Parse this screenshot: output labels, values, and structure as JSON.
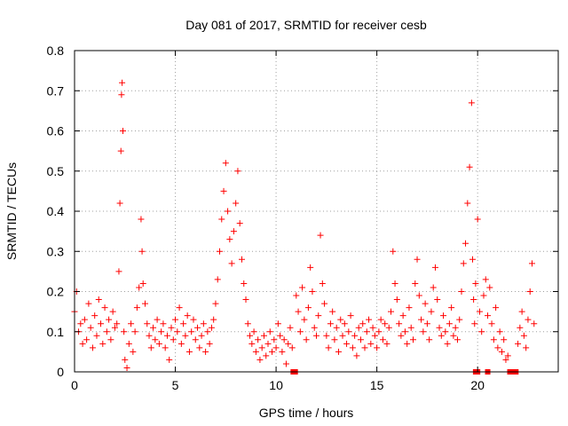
{
  "chart_data": {
    "type": "scatter",
    "title": "Day 081 of 2017, SRMTID for receiver cesb",
    "xlabel": "GPS time / hours",
    "ylabel": "SRMTID / TECUs",
    "xlim": [
      0,
      24
    ],
    "ylim": [
      0,
      0.8
    ],
    "grid": true,
    "marker": "+",
    "color": "#ff0000",
    "xticks": [
      0,
      5,
      10,
      15,
      20
    ],
    "xtick_labels": [
      "0",
      "5",
      "10",
      "15",
      "20"
    ],
    "yticks": [
      0,
      0.1,
      0.2,
      0.3,
      0.4,
      0.5,
      0.6,
      0.7,
      0.8
    ],
    "ytick_labels": [
      "0",
      "0.1",
      "0.2",
      "0.3",
      "0.4",
      "0.5",
      "0.6",
      "0.7",
      "0.8"
    ],
    "series": [
      {
        "name": "SRMTID",
        "x": [
          0.0,
          0.1,
          0.2,
          0.3,
          0.4,
          0.5,
          0.6,
          0.7,
          0.8,
          0.9,
          1.0,
          1.1,
          1.2,
          1.3,
          1.4,
          1.5,
          1.6,
          1.7,
          1.8,
          1.9,
          2.0,
          2.1,
          2.2,
          2.25,
          2.3,
          2.33,
          2.36,
          2.4,
          2.45,
          2.5,
          2.6,
          2.7,
          2.8,
          2.9,
          3.0,
          3.1,
          3.2,
          3.3,
          3.35,
          3.4,
          3.5,
          3.6,
          3.7,
          3.8,
          3.9,
          4.0,
          4.1,
          4.2,
          4.3,
          4.4,
          4.5,
          4.6,
          4.7,
          4.8,
          4.9,
          5.0,
          5.1,
          5.2,
          5.3,
          5.4,
          5.5,
          5.6,
          5.7,
          5.8,
          5.9,
          6.0,
          6.1,
          6.2,
          6.3,
          6.4,
          6.5,
          6.6,
          6.7,
          6.8,
          6.9,
          7.0,
          7.1,
          7.2,
          7.3,
          7.4,
          7.5,
          7.6,
          7.7,
          7.8,
          7.9,
          8.0,
          8.1,
          8.2,
          8.3,
          8.4,
          8.5,
          8.6,
          8.7,
          8.8,
          8.9,
          9.0,
          9.1,
          9.2,
          9.3,
          9.4,
          9.5,
          9.6,
          9.7,
          9.8,
          9.9,
          10.0,
          10.1,
          10.2,
          10.3,
          10.4,
          10.5,
          10.6,
          10.7,
          10.8,
          11.0,
          11.1,
          11.2,
          11.3,
          11.4,
          11.5,
          11.6,
          11.7,
          11.8,
          11.9,
          12.0,
          12.1,
          12.2,
          12.3,
          12.4,
          12.5,
          12.6,
          12.7,
          12.8,
          12.9,
          13.0,
          13.1,
          13.2,
          13.3,
          13.4,
          13.5,
          13.6,
          13.7,
          13.8,
          13.9,
          14.0,
          14.1,
          14.2,
          14.3,
          14.4,
          14.5,
          14.6,
          14.7,
          14.8,
          14.9,
          15.0,
          15.1,
          15.2,
          15.3,
          15.4,
          15.5,
          15.6,
          15.7,
          15.8,
          15.9,
          16.0,
          16.1,
          16.2,
          16.3,
          16.4,
          16.5,
          16.6,
          16.7,
          16.8,
          16.9,
          17.0,
          17.1,
          17.2,
          17.3,
          17.4,
          17.5,
          17.6,
          17.7,
          17.8,
          17.9,
          18.0,
          18.1,
          18.2,
          18.3,
          18.4,
          18.5,
          18.6,
          18.7,
          18.8,
          18.9,
          19.0,
          19.1,
          19.2,
          19.3,
          19.4,
          19.5,
          19.6,
          19.7,
          19.75,
          19.8,
          19.85,
          19.9,
          20.0,
          20.1,
          20.2,
          20.3,
          20.4,
          20.5,
          20.6,
          20.7,
          20.8,
          20.9,
          21.0,
          21.1,
          21.2,
          21.3,
          21.4,
          21.5,
          22.0,
          22.1,
          22.2,
          22.3,
          22.4,
          22.5,
          22.6,
          22.7,
          22.8
        ],
        "y": [
          0.15,
          0.2,
          0.1,
          0.12,
          0.07,
          0.13,
          0.08,
          0.17,
          0.11,
          0.06,
          0.14,
          0.09,
          0.18,
          0.12,
          0.07,
          0.16,
          0.1,
          0.13,
          0.08,
          0.15,
          0.11,
          0.12,
          0.25,
          0.42,
          0.55,
          0.69,
          0.72,
          0.6,
          0.1,
          0.03,
          0.01,
          0.07,
          0.12,
          0.05,
          0.1,
          0.16,
          0.21,
          0.38,
          0.3,
          0.22,
          0.17,
          0.12,
          0.09,
          0.06,
          0.11,
          0.08,
          0.13,
          0.07,
          0.1,
          0.12,
          0.06,
          0.09,
          0.03,
          0.11,
          0.08,
          0.13,
          0.1,
          0.16,
          0.07,
          0.12,
          0.09,
          0.14,
          0.05,
          0.1,
          0.13,
          0.08,
          0.11,
          0.06,
          0.09,
          0.12,
          0.05,
          0.1,
          0.07,
          0.11,
          0.13,
          0.17,
          0.23,
          0.3,
          0.38,
          0.45,
          0.52,
          0.4,
          0.33,
          0.27,
          0.35,
          0.42,
          0.5,
          0.37,
          0.28,
          0.22,
          0.18,
          0.12,
          0.09,
          0.07,
          0.1,
          0.05,
          0.08,
          0.03,
          0.06,
          0.09,
          0.04,
          0.07,
          0.1,
          0.05,
          0.08,
          0.06,
          0.12,
          0.09,
          0.05,
          0.08,
          0.02,
          0.07,
          0.11,
          0.06,
          0.19,
          0.15,
          0.1,
          0.21,
          0.13,
          0.08,
          0.16,
          0.26,
          0.2,
          0.11,
          0.09,
          0.14,
          0.34,
          0.22,
          0.17,
          0.09,
          0.06,
          0.12,
          0.15,
          0.08,
          0.11,
          0.05,
          0.13,
          0.09,
          0.12,
          0.07,
          0.1,
          0.14,
          0.06,
          0.09,
          0.04,
          0.11,
          0.08,
          0.12,
          0.06,
          0.1,
          0.13,
          0.07,
          0.11,
          0.09,
          0.06,
          0.1,
          0.13,
          0.08,
          0.12,
          0.07,
          0.11,
          0.15,
          0.3,
          0.22,
          0.18,
          0.12,
          0.09,
          0.14,
          0.1,
          0.07,
          0.16,
          0.11,
          0.08,
          0.22,
          0.28,
          0.19,
          0.13,
          0.1,
          0.17,
          0.12,
          0.08,
          0.15,
          0.21,
          0.26,
          0.18,
          0.11,
          0.09,
          0.14,
          0.1,
          0.07,
          0.12,
          0.16,
          0.09,
          0.11,
          0.08,
          0.13,
          0.2,
          0.27,
          0.32,
          0.42,
          0.51,
          0.67,
          0.28,
          0.18,
          0.12,
          0.22,
          0.38,
          0.15,
          0.1,
          0.19,
          0.23,
          0.14,
          0.21,
          0.12,
          0.08,
          0.16,
          0.06,
          0.1,
          0.05,
          0.08,
          0.03,
          0.04,
          0.07,
          0.11,
          0.15,
          0.09,
          0.06,
          0.13,
          0.2,
          0.27,
          0.12
        ]
      },
      {
        "name": "markers_at_zero",
        "x": [
          10.85,
          10.95,
          19.9,
          20.0,
          20.5,
          21.6,
          21.7,
          21.8,
          21.9
        ],
        "y": [
          0,
          0,
          0,
          0,
          0,
          0,
          0,
          0,
          0
        ]
      }
    ]
  }
}
